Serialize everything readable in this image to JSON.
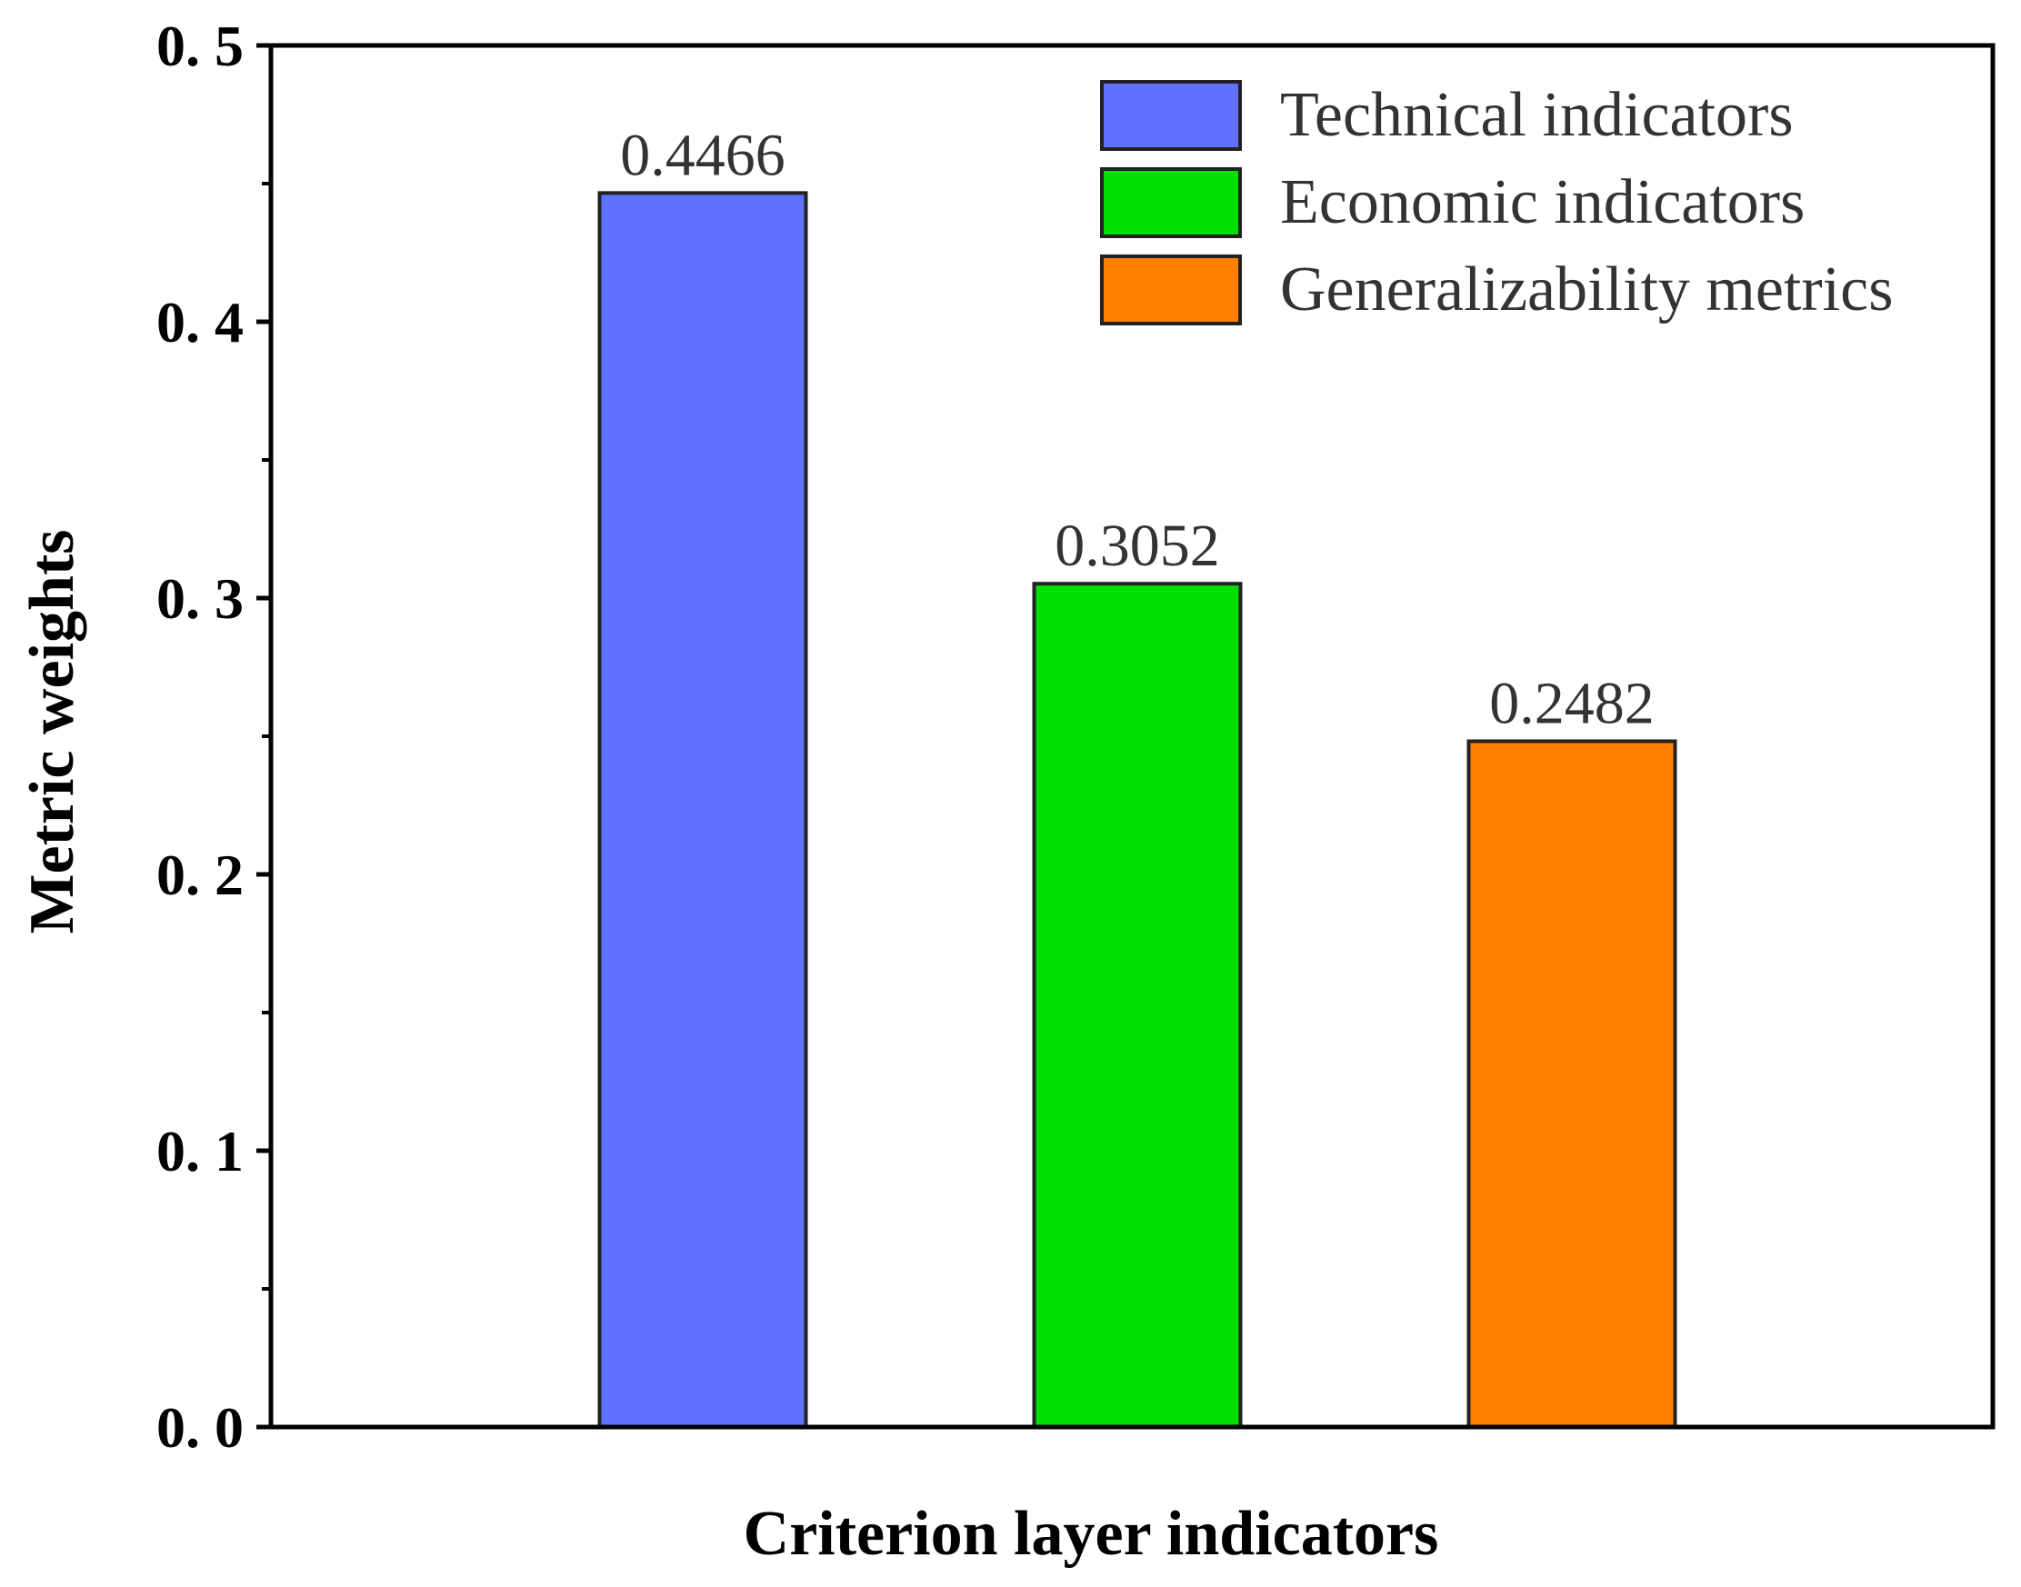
{
  "chart_data": {
    "type": "bar",
    "title": "",
    "xlabel": "Criterion layer indicators",
    "ylabel": "Metric weights",
    "ylim": [
      0,
      0.5
    ],
    "yticks": [
      0.0,
      0.1,
      0.2,
      0.3,
      0.4,
      0.5
    ],
    "ytick_labels": [
      "0. 0",
      "0. 1",
      "0. 2",
      "0. 3",
      "0. 4",
      "0. 5"
    ],
    "grid": false,
    "legend_position": "top-right",
    "categories": [
      "Technical indicators",
      "Economic indicators",
      "Generalizability metrics"
    ],
    "values": [
      0.4466,
      0.3052,
      0.2482
    ],
    "value_labels": [
      "0.4466",
      "0.3052",
      "0.2482"
    ],
    "colors": [
      "#6070FF",
      "#00E000",
      "#FF8000"
    ]
  }
}
